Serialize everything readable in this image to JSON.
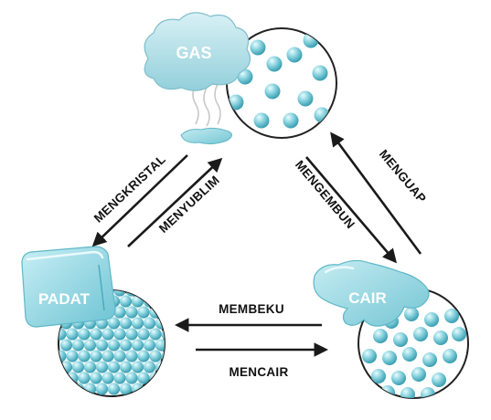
{
  "states": {
    "gas": "GAS",
    "solid": "PADAT",
    "liquid": "CAIR"
  },
  "processes": {
    "mengkristal": "MENGKRISTAL",
    "menyublim": "MENYUBLIM",
    "mengembun": "MENGEMBUN",
    "menguap": "MENGUAP",
    "membeku": "MEMBEKU",
    "mencair": "MENCAIR"
  },
  "colors": {
    "particle": "#7ecbd6",
    "particle_dark": "#3aa6b8",
    "cloud": "#b8e3ea",
    "ice": "#8fd3df",
    "water": "#9ed9e3",
    "arrow": "#1a1a1a"
  }
}
